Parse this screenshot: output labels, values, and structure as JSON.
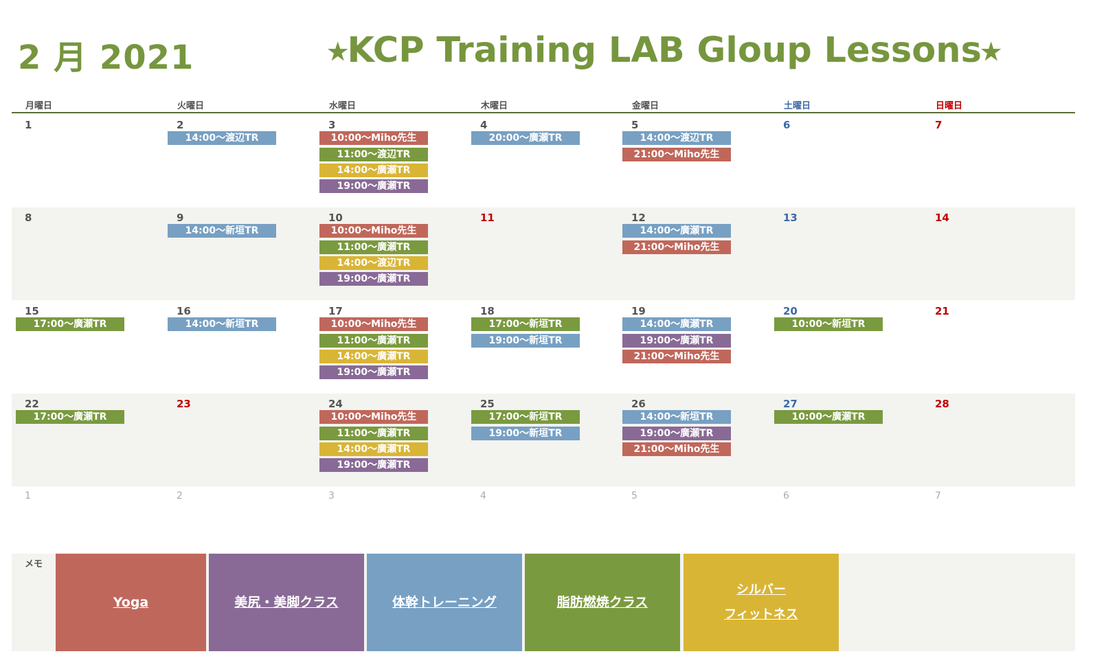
{
  "title": {
    "month": "2 月 2021",
    "main": "⭑KCP Training LAB Gloup Lessons⭑"
  },
  "weekdays": [
    "月曜日",
    "火曜日",
    "水曜日",
    "木曜日",
    "金曜日",
    "土曜日",
    "日曜日"
  ],
  "weeks": [
    {
      "days": [
        {
          "num": "1",
          "lessons": []
        },
        {
          "num": "2",
          "lessons": [
            {
              "text": "14:00〜渡辺TR",
              "color": "blue"
            }
          ]
        },
        {
          "num": "3",
          "lessons": [
            {
              "text": "10:00〜Miho先生",
              "color": "red"
            },
            {
              "text": "11:00〜渡辺TR",
              "color": "green"
            },
            {
              "text": "14:00〜廣瀬TR",
              "color": "yellow"
            },
            {
              "text": "19:00〜廣瀬TR",
              "color": "purple"
            }
          ]
        },
        {
          "num": "4",
          "lessons": [
            {
              "text": "20:00〜廣瀬TR",
              "color": "blue"
            }
          ]
        },
        {
          "num": "5",
          "lessons": [
            {
              "text": "14:00〜渡辺TR",
              "color": "blue"
            },
            {
              "text": "21:00〜Miho先生",
              "color": "red"
            }
          ]
        },
        {
          "num": "6",
          "lessons": []
        },
        {
          "num": "7",
          "lessons": []
        }
      ]
    },
    {
      "days": [
        {
          "num": "8",
          "lessons": []
        },
        {
          "num": "9",
          "lessons": [
            {
              "text": "14:00〜新垣TR",
              "color": "blue"
            }
          ]
        },
        {
          "num": "10",
          "lessons": [
            {
              "text": "10:00〜Miho先生",
              "color": "red"
            },
            {
              "text": "11:00〜廣瀬TR",
              "color": "green"
            },
            {
              "text": "14:00〜渡辺TR",
              "color": "yellow"
            },
            {
              "text": "19:00〜廣瀬TR",
              "color": "purple"
            }
          ]
        },
        {
          "num": "11",
          "lessons": [],
          "holiday": true
        },
        {
          "num": "12",
          "lessons": [
            {
              "text": "14:00〜廣瀬TR",
              "color": "blue"
            },
            {
              "text": "21:00〜Miho先生",
              "color": "red"
            }
          ]
        },
        {
          "num": "13",
          "lessons": []
        },
        {
          "num": "14",
          "lessons": []
        }
      ]
    },
    {
      "days": [
        {
          "num": "15",
          "lessons": [
            {
              "text": "17:00〜廣瀬TR",
              "color": "green"
            }
          ]
        },
        {
          "num": "16",
          "lessons": [
            {
              "text": "14:00〜新垣TR",
              "color": "blue"
            }
          ]
        },
        {
          "num": "17",
          "lessons": [
            {
              "text": "10:00〜Miho先生",
              "color": "red"
            },
            {
              "text": "11:00〜廣瀬TR",
              "color": "green"
            },
            {
              "text": "14:00〜廣瀬TR",
              "color": "yellow"
            },
            {
              "text": "19:00〜廣瀬TR",
              "color": "purple"
            }
          ]
        },
        {
          "num": "18",
          "lessons": [
            {
              "text": "17:00〜新垣TR",
              "color": "green"
            },
            {
              "text": "19:00〜新垣TR",
              "color": "blue"
            }
          ]
        },
        {
          "num": "19",
          "lessons": [
            {
              "text": "14:00〜廣瀬TR",
              "color": "blue"
            },
            {
              "text": "19:00〜廣瀬TR",
              "color": "purple"
            },
            {
              "text": "21:00〜Miho先生",
              "color": "red"
            }
          ]
        },
        {
          "num": "20",
          "lessons": [
            {
              "text": "10:00〜新垣TR",
              "color": "green"
            }
          ]
        },
        {
          "num": "21",
          "lessons": []
        }
      ]
    },
    {
      "days": [
        {
          "num": "22",
          "lessons": [
            {
              "text": "17:00〜廣瀬TR",
              "color": "green"
            }
          ]
        },
        {
          "num": "23",
          "lessons": [],
          "holiday": true
        },
        {
          "num": "24",
          "lessons": [
            {
              "text": "10:00〜Miho先生",
              "color": "red"
            },
            {
              "text": "11:00〜廣瀬TR",
              "color": "green"
            },
            {
              "text": "14:00〜廣瀬TR",
              "color": "yellow"
            },
            {
              "text": "19:00〜廣瀬TR",
              "color": "purple"
            }
          ]
        },
        {
          "num": "25",
          "lessons": [
            {
              "text": "17:00〜新垣TR",
              "color": "green"
            },
            {
              "text": "19:00〜新垣TR",
              "color": "blue"
            }
          ]
        },
        {
          "num": "26",
          "lessons": [
            {
              "text": "14:00〜新垣TR",
              "color": "blue"
            },
            {
              "text": "19:00〜廣瀬TR",
              "color": "purple"
            },
            {
              "text": "21:00〜Miho先生",
              "color": "red"
            }
          ]
        },
        {
          "num": "27",
          "lessons": [
            {
              "text": "10:00〜廣瀬TR",
              "color": "green"
            }
          ]
        },
        {
          "num": "28",
          "lessons": []
        }
      ]
    }
  ],
  "next_month_days": [
    "1",
    "2",
    "3",
    "4",
    "5",
    "6",
    "7"
  ],
  "memo": {
    "label": "メモ",
    "legend": [
      {
        "lines": [
          "Yoga"
        ],
        "color": "red"
      },
      {
        "lines": [
          "美尻・美脚クラス"
        ],
        "color": "purple"
      },
      {
        "lines": [
          "体幹トレーニング"
        ],
        "color": "blue"
      },
      {
        "lines": [
          "脂肪燃焼クラス"
        ],
        "color": "green"
      },
      {
        "lines": [
          "シルバー",
          "フィットネス"
        ],
        "color": "yellow"
      }
    ]
  },
  "colors": {
    "red": "#c0675b",
    "green": "#7a9a3f",
    "blue": "#77a0c3",
    "yellow": "#d9b536",
    "purple": "#896a96",
    "accent": "#76963e"
  }
}
